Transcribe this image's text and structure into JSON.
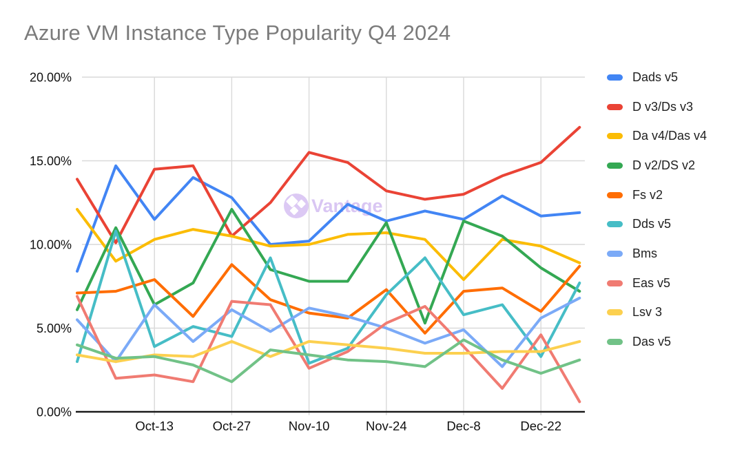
{
  "colors": {
    "background": "#ffffff",
    "title_text": "#7b7b7b",
    "axis_text": "#111111",
    "gridline": "#d9d9d9",
    "axis_line": "#1a1a1a",
    "watermark_text": "#d9c6f3",
    "watermark_circle": "#dcc9f4"
  },
  "watermark": {
    "text": "Vantage",
    "logo": "three-white-diamonds-in-circle"
  },
  "chart_data": {
    "type": "line",
    "title": "Azure VM Instance Type Popularity Q4 2024",
    "xlabel": "",
    "ylabel": "",
    "x": [
      "Sep-29",
      "Oct-6",
      "Oct-13",
      "Oct-20",
      "Oct-27",
      "Nov-3",
      "Nov-10",
      "Nov-17",
      "Nov-24",
      "Dec-1",
      "Dec-8",
      "Dec-15",
      "Dec-22",
      "Dec-29"
    ],
    "x_axis_ticks": {
      "indices": [
        2,
        4,
        6,
        8,
        10,
        12
      ],
      "labels": [
        "Oct-13",
        "Oct-27",
        "Nov-10",
        "Nov-24",
        "Dec-8",
        "Dec-22"
      ]
    },
    "y_axis": {
      "tick_labels": [
        "0.00%",
        "5.00%",
        "10.00%",
        "15.00%",
        "20.00%"
      ],
      "tick_values": [
        0,
        5,
        10,
        15,
        20
      ],
      "min": 0,
      "max": 20,
      "unit": "percent"
    },
    "grid": true,
    "legend_position": "right",
    "series": [
      {
        "name": "Dads v5",
        "color": "#4285F4",
        "values": [
          8.4,
          14.7,
          11.5,
          14.0,
          12.8,
          10.0,
          10.2,
          12.4,
          11.4,
          12.0,
          11.5,
          12.9,
          11.7,
          11.9
        ]
      },
      {
        "name": "D v3/Ds v3",
        "color": "#EA4335",
        "values": [
          13.9,
          10.1,
          14.5,
          14.7,
          10.5,
          12.5,
          15.5,
          14.9,
          13.2,
          12.7,
          13.0,
          14.1,
          14.9,
          17.0
        ]
      },
      {
        "name": "Da v4/Das v4",
        "color": "#FBBC04",
        "values": [
          12.1,
          9.0,
          10.3,
          10.9,
          10.5,
          9.9,
          10.0,
          10.6,
          10.7,
          10.3,
          7.9,
          10.3,
          9.9,
          8.9
        ]
      },
      {
        "name": "D v2/DS v2",
        "color": "#34A853",
        "values": [
          6.1,
          11.0,
          6.4,
          7.7,
          12.1,
          8.5,
          7.8,
          7.8,
          11.3,
          5.3,
          11.4,
          10.5,
          8.6,
          7.2
        ]
      },
      {
        "name": "Fs v2",
        "color": "#FF6D01",
        "values": [
          7.1,
          7.2,
          7.9,
          5.7,
          8.8,
          6.7,
          5.9,
          5.6,
          7.3,
          4.7,
          7.2,
          7.4,
          6.0,
          8.7
        ]
      },
      {
        "name": "Dds v5",
        "color": "#46BDC6",
        "values": [
          3.0,
          10.8,
          3.9,
          5.1,
          4.5,
          9.2,
          2.9,
          3.8,
          7.0,
          9.2,
          5.8,
          6.4,
          3.3,
          7.7
        ]
      },
      {
        "name": "Bms",
        "color": "#7BAAF7",
        "values": [
          5.5,
          3.0,
          6.4,
          4.2,
          6.1,
          4.8,
          6.2,
          5.7,
          5.0,
          4.1,
          4.9,
          2.7,
          5.6,
          6.8
        ]
      },
      {
        "name": "Eas v5",
        "color": "#F07B72",
        "values": [
          6.9,
          2.0,
          2.2,
          1.8,
          6.6,
          6.4,
          2.6,
          3.6,
          5.3,
          6.3,
          3.9,
          1.4,
          4.6,
          0.6
        ]
      },
      {
        "name": "Lsv 3",
        "color": "#FCD04F",
        "values": [
          3.4,
          3.0,
          3.4,
          3.3,
          4.2,
          3.3,
          4.2,
          4.0,
          3.8,
          3.5,
          3.5,
          3.6,
          3.6,
          4.2
        ]
      },
      {
        "name": "Das v5",
        "color": "#71C287",
        "values": [
          4.0,
          3.2,
          3.3,
          2.8,
          1.8,
          3.7,
          3.4,
          3.1,
          3.0,
          2.7,
          4.3,
          3.1,
          2.3,
          3.1
        ]
      }
    ]
  }
}
